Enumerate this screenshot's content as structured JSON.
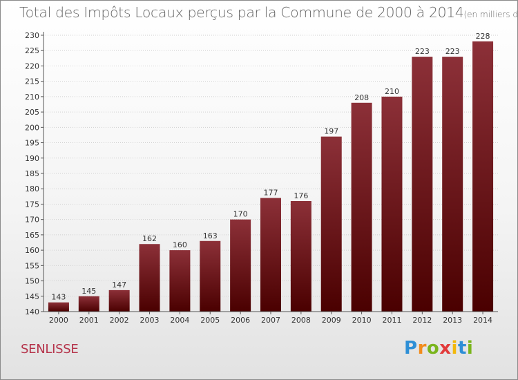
{
  "chart_data": {
    "type": "bar",
    "title": "Total des Impôts Locaux perçus par la Commune de 2000 à 2014",
    "unit_note": "(en milliers d'€)",
    "categories": [
      "2000",
      "2001",
      "2002",
      "2003",
      "2004",
      "2005",
      "2006",
      "2007",
      "2008",
      "2009",
      "2010",
      "2011",
      "2012",
      "2013",
      "2014"
    ],
    "values": [
      143,
      145,
      147,
      162,
      160,
      163,
      170,
      177,
      176,
      197,
      208,
      210,
      223,
      223,
      228
    ],
    "xlabel": "",
    "ylabel": "",
    "ylim": [
      140,
      230
    ],
    "ytick_step": 5,
    "grid": true,
    "bar_color": "#6e1620"
  },
  "commune": "SENLISSE",
  "logo": {
    "letters": [
      "P",
      "r",
      "o",
      "x",
      "i",
      "t",
      "i"
    ],
    "colors": [
      "#2e8fd6",
      "#f28c1c",
      "#7ab51d",
      "#e23b3b",
      "#f2b80c",
      "#2e8fd6",
      "#7ab51d"
    ]
  }
}
